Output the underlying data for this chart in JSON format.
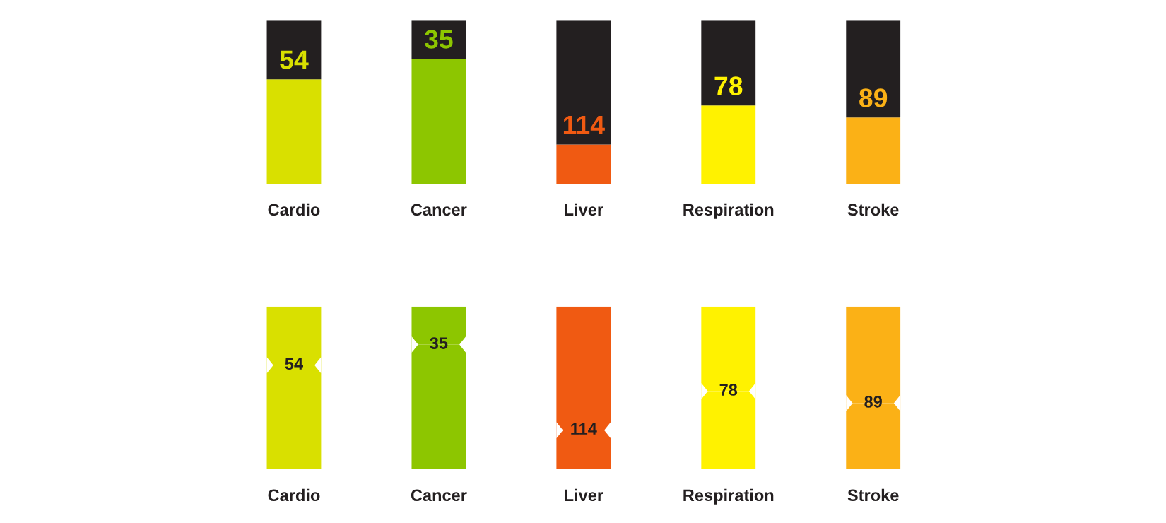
{
  "chart_data": [
    {
      "type": "bar",
      "stacked": true,
      "ylim": [
        0,
        150
      ],
      "tick_labels": "x",
      "categories": [
        "Cardio",
        "Cancer",
        "Liver",
        "Respiration",
        "Stroke"
      ],
      "series": [
        {
          "colors": [
            "#d9e000",
            "#8dc600",
            "#f05a12",
            "#fff200",
            "#fbb116"
          ],
          "values": [
            96,
            115,
            36,
            72,
            61
          ]
        },
        {
          "color": "#231f20",
          "values": [
            54,
            35,
            114,
            78,
            89
          ],
          "value_labels": [
            "54",
            "35",
            "114",
            "78",
            "89"
          ]
        }
      ]
    },
    {
      "type": "bar",
      "stacked": true,
      "ylim": [
        0,
        150
      ],
      "tick_labels": "x",
      "categories": [
        "Cardio",
        "Cancer",
        "Liver",
        "Respiration",
        "Stroke"
      ],
      "series": [
        {
          "colors": [
            "#d9e000",
            "#8dc600",
            "#f05a12",
            "#fff200",
            "#fbb116"
          ],
          "values": [
            96,
            115,
            36,
            72,
            61
          ]
        },
        {
          "colors": [
            "#d9e000",
            "#8dc600",
            "#f05a12",
            "#fff200",
            "#fbb116"
          ],
          "values": [
            54,
            35,
            114,
            78,
            89
          ],
          "value_labels": [
            "54",
            "35",
            "114",
            "78",
            "89"
          ]
        }
      ]
    }
  ]
}
